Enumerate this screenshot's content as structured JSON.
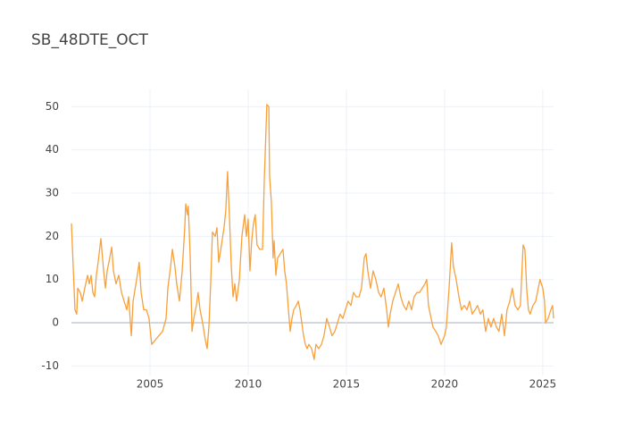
{
  "chart_data": {
    "type": "line",
    "title": "SB_48DTE_OCT",
    "x": [
      2001.0,
      2001.09,
      2001.18,
      2001.27,
      2001.32,
      2001.45,
      2001.55,
      2001.68,
      2001.82,
      2001.91,
      2002.0,
      2002.09,
      2002.18,
      2002.27,
      2002.36,
      2002.5,
      2002.64,
      2002.73,
      2002.82,
      2002.95,
      2003.05,
      2003.14,
      2003.27,
      2003.41,
      2003.55,
      2003.68,
      2003.82,
      2003.91,
      2004.05,
      2004.14,
      2004.32,
      2004.45,
      2004.55,
      2004.68,
      2004.82,
      2004.95,
      2005.09,
      2005.27,
      2005.45,
      2005.64,
      2005.82,
      2005.91,
      2006.05,
      2006.14,
      2006.27,
      2006.36,
      2006.5,
      2006.64,
      2006.77,
      2006.82,
      2006.91,
      2006.95,
      2007.05,
      2007.14,
      2007.23,
      2007.36,
      2007.45,
      2007.55,
      2007.68,
      2007.82,
      2007.91,
      2008.0,
      2008.09,
      2008.18,
      2008.32,
      2008.41,
      2008.5,
      2008.64,
      2008.77,
      2008.86,
      2008.95,
      2009.05,
      2009.14,
      2009.23,
      2009.32,
      2009.41,
      2009.55,
      2009.68,
      2009.82,
      2009.91,
      2010.0,
      2010.09,
      2010.18,
      2010.27,
      2010.36,
      2010.45,
      2010.59,
      2010.73,
      2010.82,
      2010.91,
      2010.95,
      2011.05,
      2011.09,
      2011.18,
      2011.27,
      2011.32,
      2011.41,
      2011.5,
      2011.64,
      2011.77,
      2011.86,
      2011.95,
      2012.05,
      2012.14,
      2012.23,
      2012.32,
      2012.45,
      2012.55,
      2012.64,
      2012.73,
      2012.82,
      2012.91,
      2013.0,
      2013.09,
      2013.23,
      2013.36,
      2013.45,
      2013.59,
      2013.73,
      2013.86,
      2014.0,
      2014.14,
      2014.27,
      2014.41,
      2014.55,
      2014.68,
      2014.82,
      2014.95,
      2015.09,
      2015.23,
      2015.36,
      2015.5,
      2015.64,
      2015.77,
      2015.91,
      2016.0,
      2016.09,
      2016.23,
      2016.36,
      2016.5,
      2016.64,
      2016.77,
      2016.91,
      2017.05,
      2017.14,
      2017.23,
      2017.36,
      2017.5,
      2017.64,
      2017.77,
      2017.91,
      2018.05,
      2018.18,
      2018.32,
      2018.45,
      2018.59,
      2018.73,
      2018.86,
      2019.0,
      2019.09,
      2019.18,
      2019.27,
      2019.41,
      2019.55,
      2019.68,
      2019.82,
      2019.91,
      2020.0,
      2020.09,
      2020.23,
      2020.36,
      2020.45,
      2020.59,
      2020.73,
      2020.86,
      2021.0,
      2021.14,
      2021.27,
      2021.41,
      2021.55,
      2021.68,
      2021.82,
      2021.95,
      2022.09,
      2022.23,
      2022.36,
      2022.5,
      2022.64,
      2022.77,
      2022.91,
      2023.05,
      2023.18,
      2023.32,
      2023.45,
      2023.59,
      2023.73,
      2023.86,
      2024.0,
      2024.09,
      2024.18,
      2024.27,
      2024.36,
      2024.5,
      2024.64,
      2024.77,
      2024.86,
      2025.0,
      2025.09,
      2025.14,
      2025.27,
      2025.41,
      2025.5,
      2025.55
    ],
    "series": [
      {
        "color": "#f7a03c",
        "values": [
          23,
          13,
          3,
          2,
          8,
          7,
          5,
          8,
          11,
          9,
          11,
          7,
          6,
          11,
          14,
          19.5,
          12,
          8,
          12,
          15,
          17.5,
          12,
          9,
          11,
          7,
          5,
          3,
          6,
          -3,
          5,
          10,
          14,
          7,
          3,
          3,
          1,
          -5,
          -4,
          -3,
          -2,
          1,
          8,
          13,
          17,
          13,
          9,
          5,
          12,
          22,
          27.5,
          25,
          27,
          15,
          -2,
          1,
          4,
          7,
          3,
          0,
          -4,
          -6,
          -1,
          9,
          21,
          20,
          22,
          14,
          18,
          22,
          26,
          35,
          24,
          13,
          6,
          9,
          5,
          10,
          20,
          25,
          20,
          24,
          12,
          19,
          23,
          25,
          18,
          17,
          17,
          33,
          45,
          50.5,
          50,
          34,
          28,
          15,
          19,
          11,
          15,
          16,
          17,
          12,
          9,
          3,
          -2,
          1,
          3,
          4,
          5,
          3,
          0,
          -3,
          -5,
          -6,
          -5,
          -6,
          -8.5,
          -5,
          -6,
          -5,
          -3,
          1,
          -1,
          -3,
          -2,
          0,
          2,
          1,
          3,
          5,
          4,
          7,
          6,
          6,
          8,
          15,
          16,
          12,
          8,
          12,
          10,
          7,
          6,
          8,
          3,
          -1,
          2,
          5,
          7,
          9,
          6,
          4,
          3,
          5,
          3,
          6,
          7,
          7,
          8,
          9,
          10,
          4,
          2,
          -1,
          -2,
          -3,
          -5,
          -4,
          -3,
          -1,
          8,
          18.5,
          13,
          10,
          6,
          3,
          4,
          3,
          5,
          2,
          3,
          4,
          2,
          3,
          -2,
          1,
          -1,
          1,
          -1,
          -2,
          2,
          -3,
          3,
          5,
          8,
          4,
          3,
          4,
          18,
          17,
          8,
          3,
          2,
          4,
          5,
          8,
          10,
          8,
          5,
          0,
          1,
          3,
          4,
          1
        ]
      }
    ],
    "xlim": [
      2001.0,
      2025.55
    ],
    "xticks": [
      2005,
      2010,
      2015,
      2020,
      2025
    ],
    "ylim": [
      -12.2,
      54
    ],
    "yticks": [
      -10,
      0,
      10,
      20,
      30,
      40,
      50
    ],
    "grid": true,
    "zeroline": true
  }
}
